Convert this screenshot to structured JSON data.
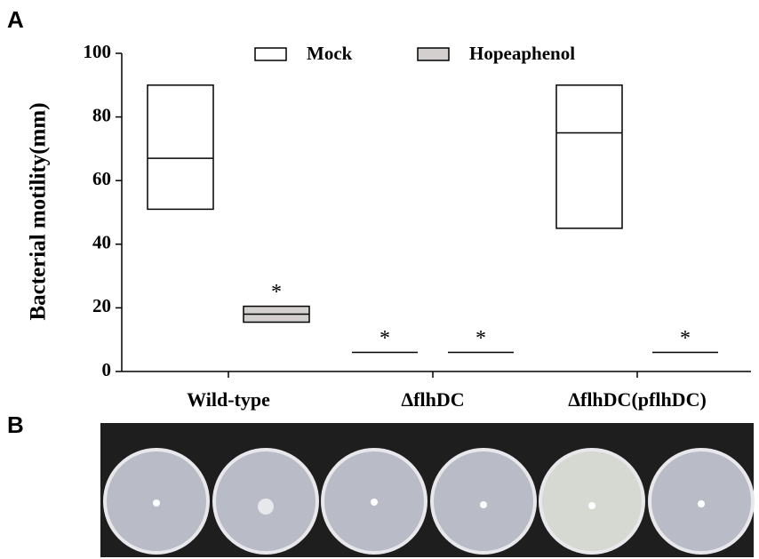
{
  "panel_labels": [
    "A",
    "B"
  ],
  "chart_data": {
    "type": "box",
    "y_label": "Bacterial motility(mm)",
    "categories": [
      "Wild-type",
      "ΔflhDC",
      "ΔflhDC(pflhDC)"
    ],
    "series": [
      {
        "name": "Mock",
        "color": "#ffffff",
        "min": [
          51,
          6,
          45
        ],
        "median": [
          67,
          6,
          75
        ],
        "max": [
          90,
          6,
          90
        ],
        "markers": [
          null,
          "*",
          null
        ]
      },
      {
        "name": "Hopeaphenol",
        "color": "#d3cfcf",
        "min": [
          15.5,
          6,
          6
        ],
        "median": [
          18,
          6,
          6
        ],
        "max": [
          20.5,
          6,
          6
        ],
        "markers": [
          "*",
          "*",
          "*"
        ]
      }
    ],
    "ylim": [
      0,
      100
    ],
    "yticks": [
      0,
      20,
      40,
      60,
      80,
      100
    ],
    "legend": "top"
  }
}
